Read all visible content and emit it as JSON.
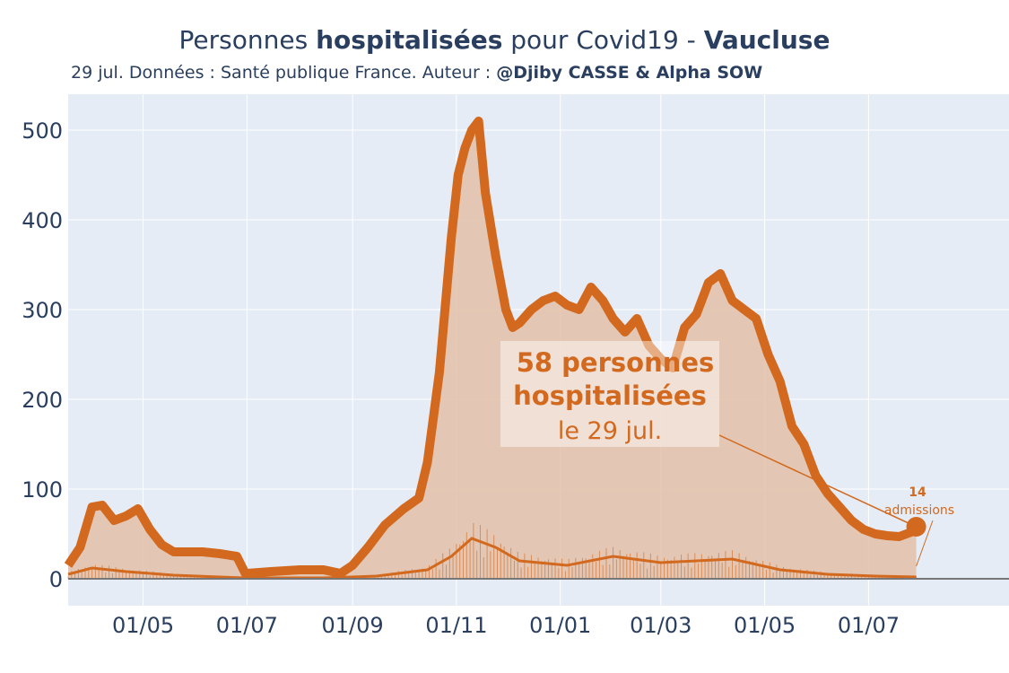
{
  "header": {
    "title_prefix": "Personnes ",
    "title_bold": "hospitalisées",
    "title_middle": " pour Covid19 - ",
    "title_region": "Vaucluse",
    "subtitle_prefix": "29 jul. Données : Santé publique France. Auteur : ",
    "subtitle_authors": "@Djiby CASSE & Alpha SOW"
  },
  "colors": {
    "plot_bg": "#e5ecf6",
    "grid": "#ffffff",
    "line": "#d2691e",
    "fill": "#e3c1a8",
    "axis_text": "#2a3f5f"
  },
  "chart_data": {
    "type": "area",
    "ylim": [
      -30,
      540
    ],
    "yticks": [
      0,
      100,
      200,
      300,
      400,
      500
    ],
    "xticks": [
      "01/05",
      "01/07",
      "01/09",
      "01/11",
      "01/01",
      "01/03",
      "01/05",
      "01/07"
    ],
    "x_range": [
      "2020-03-18",
      "2021-09-22"
    ],
    "series": [
      {
        "x": [
          "2020-03-18",
          "2020-03-25",
          "2020-04-01",
          "2020-04-07",
          "2020-04-14",
          "2020-04-21",
          "2020-04-28",
          "2020-05-05",
          "2020-05-12",
          "2020-05-19",
          "2020-05-26",
          "2020-06-05",
          "2020-06-15",
          "2020-06-25",
          "2020-06-30",
          "2020-07-01",
          "2020-07-15",
          "2020-08-01",
          "2020-08-15",
          "2020-08-25",
          "2020-09-01",
          "2020-09-10",
          "2020-09-20",
          "2020-10-01",
          "2020-10-10",
          "2020-10-15",
          "2020-10-22",
          "2020-10-29",
          "2020-11-02",
          "2020-11-06",
          "2020-11-10",
          "2020-11-14",
          "2020-11-18",
          "2020-11-24",
          "2020-11-30",
          "2020-12-04",
          "2020-12-08",
          "2020-12-15",
          "2020-12-22",
          "2020-12-29",
          "2021-01-05",
          "2021-01-12",
          "2021-01-19",
          "2021-01-26",
          "2021-02-01",
          "2021-02-08",
          "2021-02-15",
          "2021-02-22",
          "2021-03-01",
          "2021-03-08",
          "2021-03-15",
          "2021-03-22",
          "2021-03-29",
          "2021-04-05",
          "2021-04-12",
          "2021-04-19",
          "2021-04-26",
          "2021-05-03",
          "2021-05-10",
          "2021-05-17",
          "2021-05-24",
          "2021-05-31",
          "2021-06-07",
          "2021-06-14",
          "2021-06-21",
          "2021-06-28",
          "2021-07-05",
          "2021-07-12",
          "2021-07-19",
          "2021-07-26",
          "2021-07-29"
        ],
        "y": [
          15,
          35,
          80,
          82,
          65,
          70,
          78,
          55,
          38,
          30,
          30,
          30,
          28,
          25,
          6,
          6,
          8,
          10,
          10,
          6,
          15,
          35,
          60,
          78,
          90,
          130,
          230,
          380,
          450,
          480,
          500,
          510,
          430,
          360,
          300,
          280,
          285,
          300,
          310,
          315,
          305,
          300,
          325,
          310,
          290,
          275,
          290,
          260,
          245,
          235,
          280,
          295,
          330,
          340,
          310,
          300,
          290,
          250,
          220,
          170,
          150,
          115,
          95,
          80,
          65,
          55,
          50,
          48,
          47,
          52,
          58
        ]
      },
      {
        "x": [
          "2020-03-18",
          "2020-04-01",
          "2020-04-21",
          "2020-05-19",
          "2020-06-15",
          "2020-06-30",
          "2020-08-15",
          "2020-09-15",
          "2020-10-15",
          "2020-10-29",
          "2020-11-10",
          "2020-11-24",
          "2020-12-08",
          "2021-01-05",
          "2021-02-01",
          "2021-03-01",
          "2021-04-12",
          "2021-05-10",
          "2021-06-07",
          "2021-07-05",
          "2021-07-29"
        ],
        "y": [
          5,
          12,
          8,
          4,
          2,
          1,
          1,
          3,
          10,
          25,
          45,
          35,
          20,
          15,
          25,
          18,
          22,
          10,
          5,
          3,
          2
        ]
      }
    ],
    "annotations": [
      {
        "line1": "58 personnes",
        "line2": "hospitalisées",
        "line3": "le 29 jul."
      },
      {
        "line1": "14",
        "line2": "admissions"
      }
    ]
  }
}
